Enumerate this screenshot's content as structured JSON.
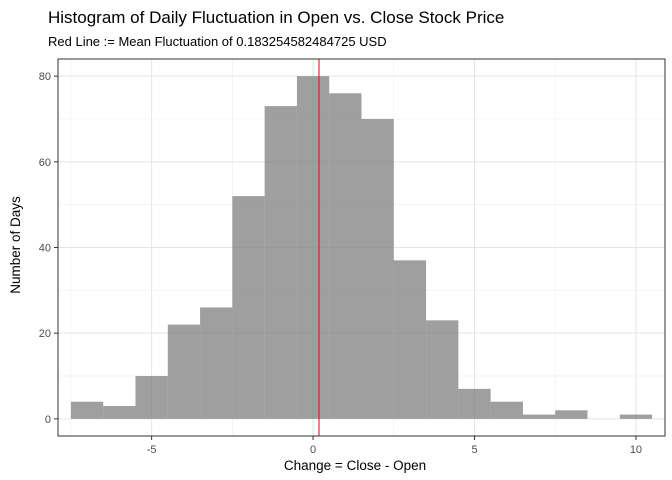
{
  "chart_data": {
    "type": "bar",
    "title": "Histogram of Daily Fluctuation in Open vs. Close Stock Price",
    "subtitle": "Red Line := Mean Fluctuation of 0.183254582484725 USD",
    "xlabel": "Change = Close - Open",
    "ylabel": "Number of Days",
    "xlim": [
      -7.9,
      10.9
    ],
    "ylim": [
      -4,
      84
    ],
    "x_ticks": [
      -5,
      0,
      5,
      10
    ],
    "y_ticks": [
      0,
      20,
      40,
      60,
      80
    ],
    "grid": true,
    "bin_width": 1,
    "bins": [
      {
        "x": -7,
        "count": 4
      },
      {
        "x": -6,
        "count": 3
      },
      {
        "x": -5,
        "count": 10
      },
      {
        "x": -4,
        "count": 22
      },
      {
        "x": -3,
        "count": 26
      },
      {
        "x": -2,
        "count": 52
      },
      {
        "x": -1,
        "count": 73
      },
      {
        "x": 0,
        "count": 80
      },
      {
        "x": 1,
        "count": 76
      },
      {
        "x": 2,
        "count": 70
      },
      {
        "x": 3,
        "count": 37
      },
      {
        "x": 4,
        "count": 23
      },
      {
        "x": 5,
        "count": 7
      },
      {
        "x": 6,
        "count": 4
      },
      {
        "x": 7,
        "count": 1
      },
      {
        "x": 8,
        "count": 2
      },
      {
        "x": 9,
        "count": 0
      },
      {
        "x": 10,
        "count": 1
      }
    ],
    "mean_line": {
      "x": 0.183254582484725,
      "color": "#e31a1c"
    },
    "bar_color": "#7f7f7f",
    "bar_opacity": 0.75
  }
}
